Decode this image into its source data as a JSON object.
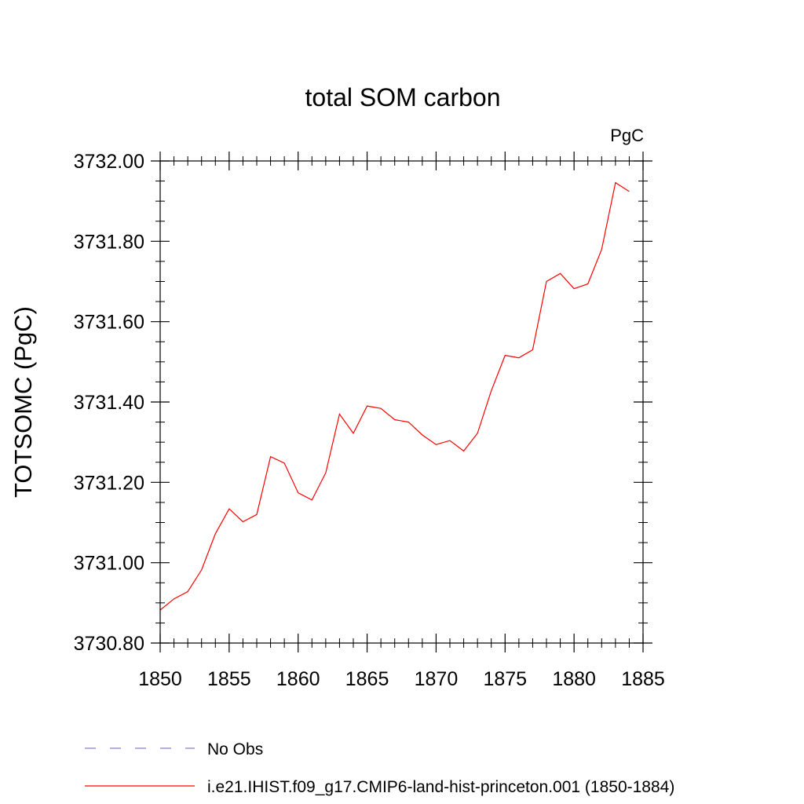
{
  "chart_data": {
    "type": "line",
    "title": "total SOM carbon",
    "units_label": "PgC",
    "xlabel": "",
    "ylabel": "TOTSOMC  (PgC)",
    "xlim": [
      1850,
      1885
    ],
    "ylim": [
      3730.8,
      3732.0
    ],
    "x_ticks": [
      "1850",
      "1855",
      "1860",
      "1865",
      "1870",
      "1875",
      "1880",
      "1885"
    ],
    "y_ticks": [
      "3730.80",
      "3731.00",
      "3731.20",
      "3731.40",
      "3731.60",
      "3731.80",
      "3732.00"
    ],
    "grid": false,
    "legend_position": "bottom",
    "series": [
      {
        "name": "i.e21.IHIST.f09_g17.CMIP6-land-hist-princeton.001 (1850-1884)",
        "color": "#ff0000",
        "style": "solid",
        "x": [
          1850,
          1851,
          1852,
          1853,
          1854,
          1855,
          1856,
          1857,
          1858,
          1859,
          1860,
          1861,
          1862,
          1863,
          1864,
          1865,
          1866,
          1867,
          1868,
          1869,
          1870,
          1871,
          1872,
          1873,
          1874,
          1875,
          1876,
          1877,
          1878,
          1879,
          1880,
          1881,
          1882,
          1883,
          1884
        ],
        "values": [
          3730.882,
          3730.91,
          3730.928,
          3730.982,
          3731.072,
          3731.134,
          3731.102,
          3731.12,
          3731.264,
          3731.248,
          3731.174,
          3731.156,
          3731.224,
          3731.37,
          3731.322,
          3731.39,
          3731.384,
          3731.356,
          3731.35,
          3731.318,
          3731.294,
          3731.304,
          3731.278,
          3731.322,
          3731.428,
          3731.516,
          3731.51,
          3731.53,
          3731.7,
          3731.72,
          3731.682,
          3731.694,
          3731.78,
          3731.946,
          3731.924
        ]
      },
      {
        "name": "No Obs",
        "color": "#8080c0",
        "style": "dashed",
        "x": [],
        "values": []
      }
    ]
  }
}
